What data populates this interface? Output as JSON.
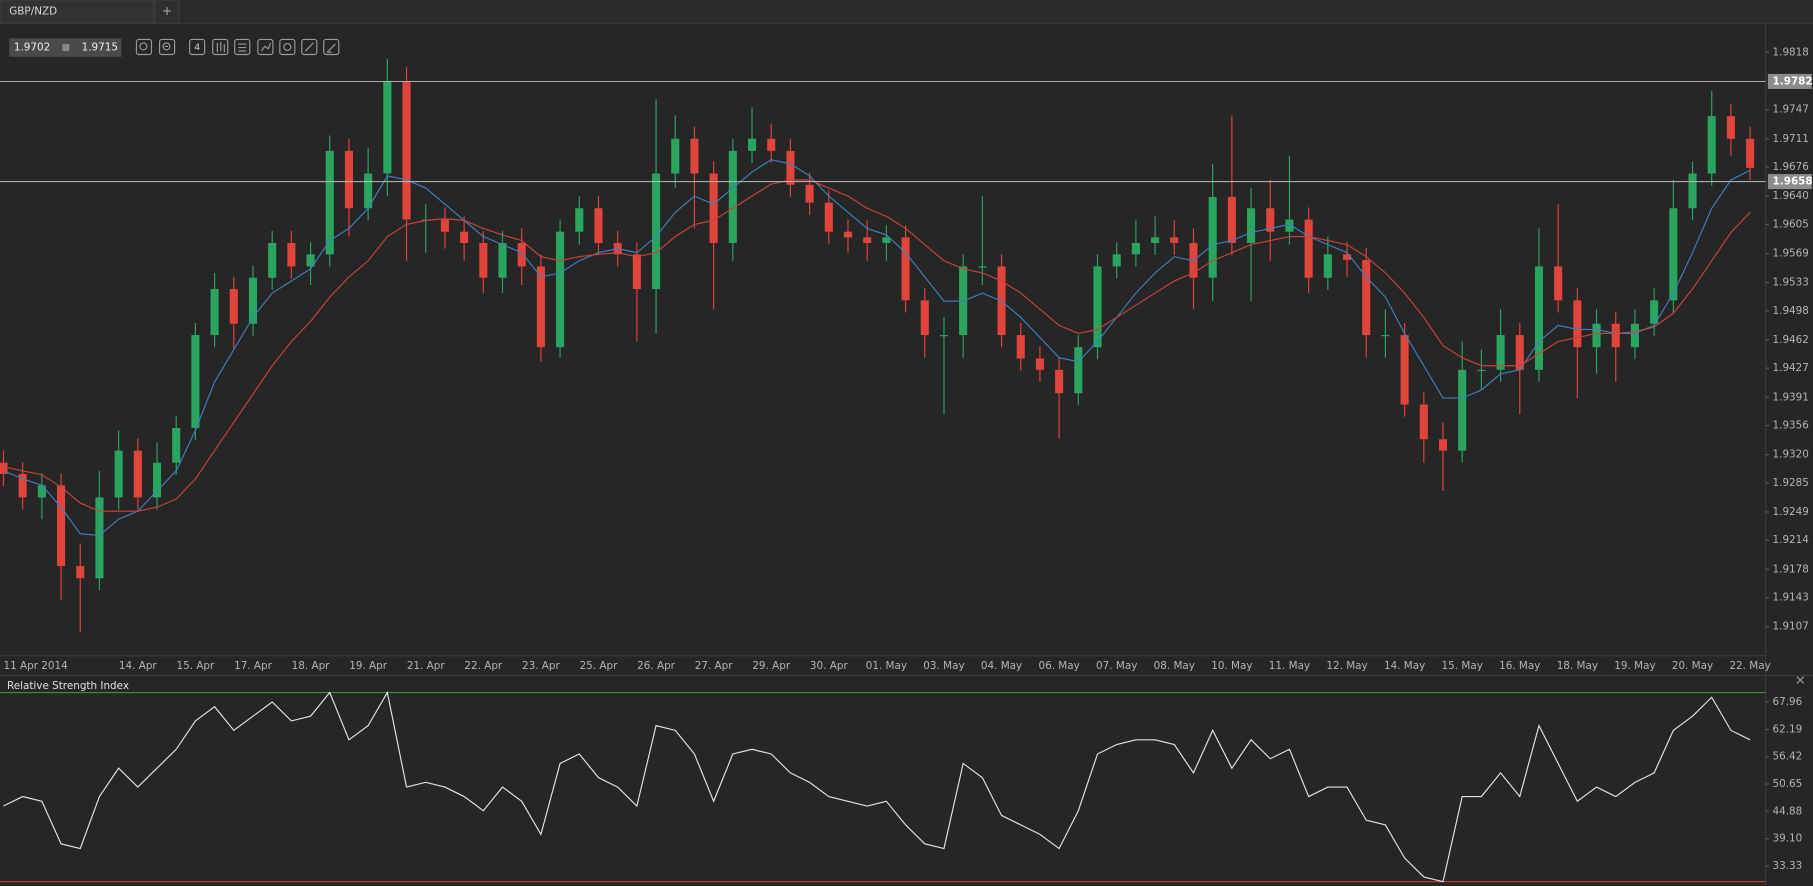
{
  "tabs": [
    "GBP/NZD",
    "+"
  ],
  "quote": {
    "bid": 1.9702,
    "ask": 1.9715
  },
  "toolbar": {
    "interval": "4"
  },
  "chart_data": [
    {
      "type": "candlestick",
      "categories": [
        "11 Apr 2014",
        null,
        null,
        null,
        null,
        null,
        null,
        "14. Apr",
        null,
        null,
        "15. Apr",
        null,
        null,
        "17. Apr",
        null,
        null,
        "18. Apr",
        null,
        null,
        "19. Apr",
        null,
        null,
        "21. Apr",
        null,
        null,
        "22. Apr",
        null,
        null,
        "23. Apr",
        null,
        null,
        "25. Apr",
        null,
        null,
        "26. Apr",
        null,
        null,
        "27. Apr",
        null,
        null,
        "29. Apr",
        null,
        null,
        "30. Apr",
        null,
        null,
        "01. May",
        null,
        null,
        "03. May",
        null,
        null,
        "04. May",
        null,
        null,
        "06. May",
        null,
        null,
        "07. May",
        null,
        null,
        "08. May",
        null,
        null,
        "10. May",
        null,
        null,
        "11. May",
        null,
        null,
        "12. May",
        null,
        null,
        "14. May",
        null,
        null,
        "15. May",
        null,
        null,
        "16. May",
        null,
        null,
        "18. May",
        null,
        null,
        "19. May",
        null,
        null,
        "20. May",
        null,
        null,
        "22. May"
      ],
      "open": [
        1.931,
        1.9296,
        1.9267,
        1.9282,
        1.9182,
        1.9167,
        1.9267,
        1.9325,
        1.9267,
        1.931,
        1.9353,
        1.9468,
        1.9525,
        1.9482,
        1.9539,
        1.9582,
        1.9553,
        1.9568,
        1.9696,
        1.9625,
        1.9668,
        1.9782,
        1.9611,
        1.9611,
        1.9596,
        1.9582,
        1.9539,
        1.9582,
        1.9553,
        1.9453,
        1.9596,
        1.9625,
        1.9582,
        1.9568,
        1.9525,
        1.9668,
        1.9711,
        1.9668,
        1.9582,
        1.9696,
        1.9711,
        1.9696,
        1.9654,
        1.9632,
        1.9596,
        1.9589,
        1.9582,
        1.9589,
        1.9511,
        1.9468,
        1.9468,
        1.9553,
        1.9553,
        1.9468,
        1.9439,
        1.9425,
        1.9396,
        1.9453,
        1.9553,
        1.9568,
        1.9582,
        1.9589,
        1.9582,
        1.9539,
        1.9639,
        1.9582,
        1.9625,
        1.9596,
        1.9611,
        1.9539,
        1.9568,
        1.9561,
        1.9468,
        1.9468,
        1.9382,
        1.9339,
        1.9325,
        1.9425,
        1.9425,
        1.9468,
        1.9425,
        1.9553,
        1.9511,
        1.9453,
        1.9482,
        1.9453,
        1.9482,
        1.9511,
        1.9625,
        1.9668,
        1.9739,
        1.9711
      ],
      "high": [
        1.9325,
        1.9311,
        1.9297,
        1.9297,
        1.921,
        1.93,
        1.935,
        1.934,
        1.9335,
        1.9368,
        1.9483,
        1.9545,
        1.954,
        1.9554,
        1.9597,
        1.9597,
        1.9583,
        1.9715,
        1.9711,
        1.97,
        1.981,
        1.98,
        1.963,
        1.9626,
        1.9615,
        1.9597,
        1.9597,
        1.96,
        1.9568,
        1.9611,
        1.964,
        1.964,
        1.9597,
        1.9583,
        1.976,
        1.974,
        1.9726,
        1.9683,
        1.9711,
        1.975,
        1.973,
        1.9711,
        1.9669,
        1.9647,
        1.9611,
        1.961,
        1.9604,
        1.9604,
        1.9526,
        1.949,
        1.9568,
        1.964,
        1.9568,
        1.9483,
        1.9454,
        1.944,
        1.9468,
        1.9568,
        1.9583,
        1.961,
        1.9615,
        1.961,
        1.96,
        1.968,
        1.974,
        1.965,
        1.966,
        1.969,
        1.9626,
        1.959,
        1.9583,
        1.9576,
        1.95,
        1.9483,
        1.9397,
        1.936,
        1.946,
        1.945,
        1.95,
        1.9483,
        1.96,
        1.963,
        1.9526,
        1.95,
        1.9497,
        1.95,
        1.9526,
        1.966,
        1.9683,
        1.977,
        1.9754,
        1.9726
      ],
      "low": [
        1.9281,
        1.9252,
        1.924,
        1.914,
        1.91,
        1.9152,
        1.9252,
        1.9252,
        1.9252,
        1.9295,
        1.9338,
        1.9453,
        1.945,
        1.9467,
        1.9524,
        1.9538,
        1.953,
        1.9553,
        1.959,
        1.961,
        1.964,
        1.956,
        1.957,
        1.9575,
        1.956,
        1.952,
        1.952,
        1.953,
        1.9435,
        1.944,
        1.958,
        1.9567,
        1.9553,
        1.946,
        1.947,
        1.965,
        1.96,
        1.95,
        1.956,
        1.9681,
        1.9681,
        1.9639,
        1.9617,
        1.9581,
        1.957,
        1.956,
        1.956,
        1.9496,
        1.944,
        1.937,
        1.944,
        1.953,
        1.9453,
        1.9424,
        1.941,
        1.934,
        1.9381,
        1.9438,
        1.9538,
        1.9553,
        1.9567,
        1.9567,
        1.95,
        1.951,
        1.9567,
        1.951,
        1.956,
        1.958,
        1.952,
        1.9524,
        1.954,
        1.944,
        1.944,
        1.9367,
        1.931,
        1.9275,
        1.931,
        1.94,
        1.941,
        1.937,
        1.941,
        1.9496,
        1.939,
        1.942,
        1.941,
        1.9438,
        1.9467,
        1.9496,
        1.961,
        1.9653,
        1.969,
        1.966
      ],
      "close": [
        1.9296,
        1.9267,
        1.9282,
        1.9182,
        1.9167,
        1.9267,
        1.9325,
        1.9267,
        1.931,
        1.9353,
        1.9468,
        1.9525,
        1.9482,
        1.9539,
        1.9582,
        1.9553,
        1.9568,
        1.9696,
        1.9625,
        1.9668,
        1.9782,
        1.9611,
        1.9611,
        1.9596,
        1.9582,
        1.9539,
        1.9582,
        1.9553,
        1.9453,
        1.9596,
        1.9625,
        1.9582,
        1.9568,
        1.9525,
        1.9668,
        1.9711,
        1.9668,
        1.9582,
        1.9696,
        1.9711,
        1.9696,
        1.9654,
        1.9632,
        1.9596,
        1.9589,
        1.9582,
        1.9589,
        1.9511,
        1.9468,
        1.9468,
        1.9553,
        1.9553,
        1.9468,
        1.9439,
        1.9425,
        1.9396,
        1.9453,
        1.9553,
        1.9568,
        1.9582,
        1.9589,
        1.9582,
        1.9539,
        1.9639,
        1.9582,
        1.9625,
        1.9596,
        1.9611,
        1.9539,
        1.9568,
        1.9561,
        1.9468,
        1.9468,
        1.9382,
        1.9339,
        1.9325,
        1.9425,
        1.9425,
        1.9468,
        1.9425,
        1.9553,
        1.9511,
        1.9453,
        1.9482,
        1.9453,
        1.9482,
        1.9511,
        1.9625,
        1.9668,
        1.9739,
        1.9711,
        1.9675
      ],
      "up_color": "#2aa55f",
      "down_color": "#e0443a",
      "moving_averages": [
        {
          "color": "#3f7fc0",
          "values": [
            1.93,
            1.929,
            1.9282,
            1.9255,
            1.9222,
            1.922,
            1.924,
            1.925,
            1.9275,
            1.93,
            1.935,
            1.941,
            1.945,
            1.949,
            1.952,
            1.9535,
            1.955,
            1.9585,
            1.96,
            1.9625,
            1.9665,
            1.966,
            1.965,
            1.963,
            1.961,
            1.959,
            1.958,
            1.957,
            1.954,
            1.9545,
            1.956,
            1.957,
            1.9575,
            1.957,
            1.959,
            1.962,
            1.964,
            1.963,
            1.965,
            1.967,
            1.9685,
            1.968,
            1.9665,
            1.964,
            1.962,
            1.96,
            1.9592,
            1.957,
            1.954,
            1.951,
            1.951,
            1.952,
            1.951,
            1.949,
            1.9465,
            1.944,
            1.9435,
            1.946,
            1.949,
            1.952,
            1.9545,
            1.9565,
            1.956,
            1.958,
            1.9585,
            1.9595,
            1.96,
            1.9605,
            1.959,
            1.958,
            1.957,
            1.954,
            1.9515,
            1.947,
            1.943,
            1.939,
            1.939,
            1.94,
            1.942,
            1.9425,
            1.946,
            1.948,
            1.9475,
            1.9475,
            1.947,
            1.947,
            1.948,
            1.952,
            1.957,
            1.9625,
            1.966,
            1.9672
          ]
        },
        {
          "color": "#c6453a",
          "values": [
            1.9305,
            1.93,
            1.9295,
            1.928,
            1.926,
            1.925,
            1.925,
            1.925,
            1.9255,
            1.9265,
            1.929,
            1.9325,
            1.936,
            1.9395,
            1.943,
            1.946,
            1.9485,
            1.9515,
            1.954,
            1.956,
            1.959,
            1.9605,
            1.961,
            1.9612,
            1.961,
            1.96,
            1.9592,
            1.9585,
            1.9565,
            1.956,
            1.9565,
            1.9568,
            1.957,
            1.9565,
            1.957,
            1.959,
            1.9605,
            1.961,
            1.9625,
            1.964,
            1.9655,
            1.966,
            1.966,
            1.965,
            1.964,
            1.9625,
            1.9615,
            1.96,
            1.958,
            1.956,
            1.955,
            1.9545,
            1.9535,
            1.952,
            1.95,
            1.948,
            1.947,
            1.9475,
            1.949,
            1.9505,
            1.952,
            1.9535,
            1.9545,
            1.956,
            1.957,
            1.958,
            1.9585,
            1.959,
            1.959,
            1.9585,
            1.958,
            1.9565,
            1.9545,
            1.952,
            1.949,
            1.9455,
            1.944,
            1.943,
            1.943,
            1.943,
            1.9445,
            1.946,
            1.9465,
            1.947,
            1.947,
            1.9472,
            1.9478,
            1.9495,
            1.9525,
            1.956,
            1.9595,
            1.962
          ]
        }
      ],
      "price_lines": [
        1.9782,
        1.9658
      ],
      "ylim": [
        1.9071,
        1.9854
      ],
      "yticks": [
        1.9818,
        1.9747,
        1.9711,
        1.9676,
        {
          "value": 1.964,
          "label": "1.9640"
        },
        1.9605,
        1.9569,
        1.9533,
        1.9498,
        1.9462,
        1.9427,
        1.9391,
        1.9356,
        {
          "value": 1.932,
          "label": "1.9320"
        },
        1.9285,
        1.9249,
        1.9214,
        1.9178,
        1.9143,
        1.9107
      ]
    },
    {
      "type": "line",
      "title": "Relative Strength Index",
      "color": "#e2e2e2",
      "values": [
        46,
        48,
        47,
        38,
        37,
        48,
        54,
        50,
        54,
        58,
        64,
        67,
        62,
        65,
        68,
        64,
        65,
        70,
        60,
        63,
        70,
        50,
        51,
        50,
        48,
        45,
        50,
        47,
        40,
        55,
        57,
        52,
        50,
        46,
        63,
        62,
        57,
        47,
        57,
        58,
        57,
        53,
        51,
        48,
        47,
        46,
        47,
        42,
        38,
        37,
        55,
        52,
        44,
        42,
        40,
        37,
        45,
        57,
        59,
        60,
        60,
        59,
        53,
        62,
        54,
        60,
        56,
        58,
        48,
        50,
        50,
        43,
        42,
        35,
        31,
        30,
        48,
        48,
        53,
        48,
        63,
        55,
        47,
        50,
        48,
        51,
        53,
        62,
        65,
        69,
        62,
        60
      ],
      "levels": [
        70,
        30
      ],
      "level_colors": [
        "#3e8e3e",
        "#c0392b"
      ],
      "ylim": [
        29.6,
        70.2
      ],
      "yticks": [
        67.96,
        62.19,
        56.42,
        50.65,
        44.88,
        {
          "value": 39.1,
          "label": "39.10"
        },
        33.33
      ]
    }
  ]
}
